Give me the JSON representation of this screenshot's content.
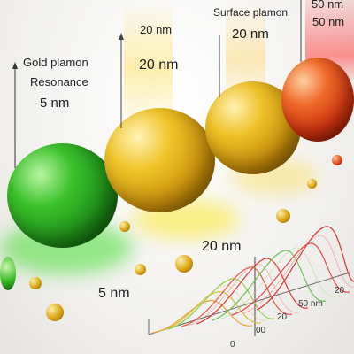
{
  "labels": {
    "top_left_title_line1": "Gold plamon",
    "top_left_title_line2": "Resonance",
    "top_left_size": "5 nm",
    "top_center_small": "20 nm",
    "center_size": "20 nm",
    "top_right_title": "Surface plamon",
    "top_right_size": "20 nm",
    "far_right_top": "50 nm",
    "far_right_second": "50 nm",
    "lower_middle_size": "20 nm",
    "bottom_left_size": "5 nm"
  },
  "plot_axis_labels": {
    "tick_0a": "0",
    "tick_0b": "00",
    "tick_20a": "20",
    "tick_50nm": "50 nm",
    "tick_20b": "20"
  },
  "colors": {
    "green_particle": "#27b321",
    "gold_particle": "#e3b21a",
    "red_particle": "#e2441c",
    "green_beam": "#8fe07a",
    "gold_beam": "#f2d86b",
    "red_beam": "#f26a6a"
  }
}
